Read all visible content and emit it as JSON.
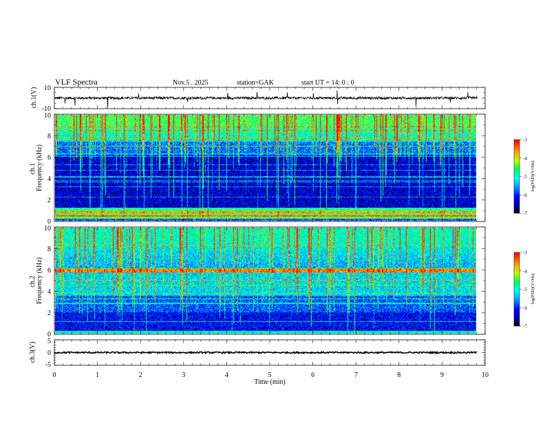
{
  "header": {
    "title": "VLF Spectra",
    "date": "Nov.5  . 2025",
    "station": "station=GAK",
    "start": "start  UT =   14: 0  : 0"
  },
  "chart_data": [
    {
      "type": "line",
      "id": "ch1-waveform",
      "ylabel": "ch.1(V)",
      "ylim": [
        -10,
        10
      ],
      "yticks": [
        "10",
        "-10"
      ],
      "xlim": [
        0,
        10
      ],
      "xticks": [
        "0",
        "1",
        "2",
        "3",
        "4",
        "5",
        "6",
        "7",
        "8",
        "9",
        "10"
      ],
      "baseline": 0,
      "noise_amplitude": 1.2,
      "x_end": 9.82
    },
    {
      "type": "heatmap",
      "id": "ch1-spectrogram",
      "ylabel": "ch.1\nFrequency (kHz)",
      "ylim": [
        0,
        10
      ],
      "yticks": [
        "0",
        "2",
        "4",
        "6",
        "8",
        "10"
      ],
      "xlim": [
        0,
        10
      ],
      "x_end": 9.82,
      "colorbar": {
        "label": "log(PSD)(V²/Hz)",
        "range": [
          -7,
          -3
        ],
        "ticks": [
          "-3",
          "-4",
          "-5",
          "-6",
          "-7"
        ]
      }
    },
    {
      "type": "heatmap",
      "id": "ch2-spectrogram",
      "ylabel": "ch.2\nFrequency (kHz)",
      "ylim": [
        0,
        10
      ],
      "yticks": [
        "0",
        "2",
        "4",
        "6",
        "8",
        "10"
      ],
      "xlim": [
        0,
        10
      ],
      "x_end": 9.82,
      "colorbar": {
        "label": "log(PSD)(V²/Hz)",
        "range": [
          -7,
          -3
        ],
        "ticks": [
          "-3",
          "-4",
          "-5",
          "-6",
          "-7"
        ]
      }
    },
    {
      "type": "line",
      "id": "ch3-waveform",
      "ylabel": "ch.3(V)",
      "ylim": [
        -5,
        5
      ],
      "yticks": [
        "5",
        "0",
        "-5"
      ],
      "xlim": [
        0,
        10
      ],
      "xticks": [
        "0",
        "1",
        "2",
        "3",
        "4",
        "5",
        "6",
        "7",
        "8",
        "9",
        "10"
      ],
      "xlabel": "Time  (min)",
      "baseline": 0,
      "noise_amplitude": 0.3,
      "x_end": 9.82
    }
  ]
}
